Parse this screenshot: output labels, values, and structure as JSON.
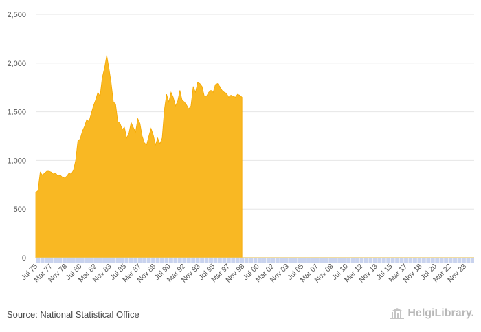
{
  "chart_data": {
    "type": "area",
    "title": "",
    "xlabel": "",
    "ylabel": "",
    "ylim": [
      0,
      2500
    ],
    "y_ticks": [
      0,
      500,
      1000,
      1500,
      2000,
      2500
    ],
    "y_tick_labels": [
      "0",
      "500",
      "1,000",
      "1,500",
      "2,000",
      "2,500"
    ],
    "grid": true,
    "x_tick_labels": [
      "Jul 75",
      "Mar 77",
      "Nov 78",
      "Jul 80",
      "Mar 82",
      "Nov 83",
      "Jul 85",
      "Mar 87",
      "Nov 88",
      "Jul 90",
      "Mar 92",
      "Nov 93",
      "Jul 95",
      "Mar 97",
      "Nov 98",
      "Jul 00",
      "Mar 02",
      "Nov 03",
      "Jul 05",
      "Mar 07",
      "Nov 08",
      "Jul 10",
      "Mar 12",
      "Nov 13",
      "Jul 15",
      "Mar 17",
      "Nov 18",
      "Jul 20",
      "Mar 22",
      "Nov 23"
    ],
    "x_range": [
      "1975-07",
      "2024-12"
    ],
    "colors": {
      "area": "#f9b823",
      "area_line": "#f5a800",
      "axis_strip": "#c9d3ee",
      "grid": "#e6e6e6"
    },
    "x": [
      "1975-07",
      "1975-10",
      "1976-01",
      "1976-04",
      "1976-07",
      "1976-10",
      "1977-01",
      "1977-04",
      "1977-07",
      "1977-10",
      "1978-01",
      "1978-04",
      "1978-07",
      "1978-10",
      "1979-01",
      "1979-04",
      "1979-07",
      "1979-10",
      "1980-01",
      "1980-04",
      "1980-07",
      "1980-10",
      "1981-01",
      "1981-04",
      "1981-07",
      "1981-10",
      "1982-01",
      "1982-04",
      "1982-07",
      "1982-10",
      "1983-01",
      "1983-04",
      "1983-07",
      "1983-10",
      "1984-01",
      "1984-04",
      "1984-07",
      "1984-10",
      "1985-01",
      "1985-04",
      "1985-07",
      "1985-10",
      "1986-01",
      "1986-04",
      "1986-07",
      "1986-10",
      "1987-01",
      "1987-04",
      "1987-07",
      "1987-10",
      "1988-01",
      "1988-04",
      "1988-07",
      "1988-10",
      "1989-01",
      "1989-04",
      "1989-07",
      "1989-10",
      "1990-01",
      "1990-04",
      "1990-07",
      "1990-10",
      "1991-01",
      "1991-04",
      "1991-07",
      "1991-10",
      "1992-01",
      "1992-04",
      "1992-07",
      "1992-10",
      "1993-01",
      "1993-04",
      "1993-07",
      "1993-10",
      "1994-01",
      "1994-04",
      "1994-07",
      "1994-10",
      "1995-01",
      "1995-04",
      "1995-07",
      "1995-10",
      "1996-01",
      "1996-04",
      "1996-07",
      "1996-10",
      "1997-01",
      "1997-04",
      "1997-07",
      "1997-10",
      "1998-01",
      "1998-04",
      "1998-07",
      "1998-10"
    ],
    "series": [
      {
        "values": [
          670,
          690,
          880,
          850,
          870,
          890,
          890,
          880,
          860,
          870,
          840,
          850,
          830,
          820,
          840,
          870,
          860,
          900,
          1000,
          1200,
          1220,
          1300,
          1350,
          1420,
          1400,
          1480,
          1560,
          1620,
          1700,
          1660,
          1850,
          1950,
          2080,
          1950,
          1800,
          1600,
          1580,
          1400,
          1380,
          1320,
          1340,
          1230,
          1280,
          1390,
          1340,
          1290,
          1430,
          1380,
          1250,
          1180,
          1160,
          1250,
          1330,
          1260,
          1160,
          1230,
          1170,
          1230,
          1520,
          1680,
          1600,
          1700,
          1650,
          1560,
          1610,
          1720,
          1620,
          1600,
          1570,
          1530,
          1560,
          1760,
          1700,
          1800,
          1790,
          1760,
          1660,
          1660,
          1700,
          1720,
          1700,
          1780,
          1790,
          1760,
          1720,
          1700,
          1690,
          1650,
          1670,
          1660,
          1650,
          1680,
          1670,
          1650
        ]
      }
    ]
  },
  "footer": {
    "source": "Source: National Statistical Office",
    "brand": "HelgiLibrary.",
    "brand_icon": "library-building-icon"
  }
}
